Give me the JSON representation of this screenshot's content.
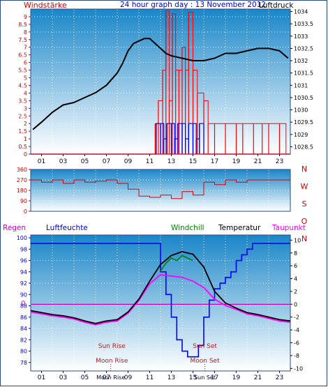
{
  "header": {
    "left_label": "Windstärke",
    "title": "24 hour graph day : 13 November 2012",
    "right_label": "Luftdruck"
  },
  "colors": {
    "frame": "#2a4a8a",
    "sky_top": "#1a86c8",
    "sky_bottom": "#ffffff",
    "wind": "#e00000",
    "gust": "#ff0000",
    "baro": "#000000",
    "dir": "#e00000",
    "humidity": "#0000ff",
    "windchill": "#008000",
    "temperature": "#000000",
    "dewpoint": "#ff00ff",
    "regen": "#cc00cc",
    "left_axis_red": "#cc0000",
    "blue_text": "#0000cc",
    "sunmoon": "#aa2222"
  },
  "chart_data": [
    {
      "type": "line",
      "title": "24 hour graph day : 13 November 2012",
      "ylabel": "Windstärke",
      "y2label": "Luftdruck",
      "x_ticks": [
        "01",
        "03",
        "05",
        "07",
        "09",
        "11",
        "13",
        "15",
        "17",
        "19",
        "21",
        "23"
      ],
      "ylim": [
        0,
        9.5
      ],
      "y_ticks": [
        "0",
        "0.5",
        "1",
        "1.5",
        "2",
        "2.5",
        "3",
        "3.5",
        "4",
        "4.5",
        "5",
        "5.5",
        "6",
        "6.5",
        "7",
        "7.5",
        "8",
        "8.5",
        "9"
      ],
      "y2lim": [
        1028.2,
        1034.1
      ],
      "y2_ticks": [
        "1028.5",
        "1029",
        "1029.5",
        "1030",
        "1030.5",
        "1031",
        "1031.5",
        "1032",
        "1032.5",
        "1033",
        "1033.5",
        "1034"
      ],
      "series": [
        {
          "name": "Luftdruck",
          "x": [
            0.2,
            1,
            2,
            3,
            4,
            5,
            6,
            7,
            8,
            8.5,
            9,
            9.5,
            10,
            10.5,
            11,
            11.5,
            12,
            12.5,
            13,
            14,
            15,
            16,
            17,
            18,
            19,
            20,
            21,
            22,
            23,
            23.8
          ],
          "y": [
            1029.2,
            1029.5,
            1029.9,
            1030.2,
            1030.3,
            1030.5,
            1030.7,
            1031.0,
            1031.5,
            1031.9,
            1032.4,
            1032.7,
            1032.8,
            1032.9,
            1032.9,
            1032.7,
            1032.5,
            1032.3,
            1032.2,
            1032.1,
            1032.0,
            1032.0,
            1032.1,
            1032.3,
            1032.3,
            1032.4,
            1032.5,
            1032.5,
            1032.4,
            1032.1
          ]
        },
        {
          "name": "Windstärke",
          "x": [
            0,
            11.5,
            11.6,
            12,
            12.3,
            12.6,
            13,
            13.3,
            13.6,
            14,
            14.3,
            14.6,
            15,
            15.3,
            15.6,
            16,
            16.5,
            17,
            18,
            19,
            20,
            21,
            22,
            23,
            24
          ],
          "y": [
            0,
            0,
            2,
            2,
            1,
            2,
            2,
            1,
            2,
            2,
            1,
            2,
            2,
            1,
            2,
            0,
            0,
            0,
            0,
            0,
            0,
            0,
            0,
            0,
            0
          ]
        },
        {
          "name": "Böen",
          "x": [
            11.5,
            11.8,
            12.2,
            12.5,
            12.8,
            13.1,
            13.4,
            13.7,
            14,
            14.3,
            14.6,
            15,
            15.4,
            16,
            16.4,
            17,
            18,
            19,
            19.6,
            20.6,
            21.4,
            22,
            23,
            23.6
          ],
          "y": [
            2,
            3.5,
            5.5,
            9.4,
            3.5,
            9.2,
            5.5,
            5.5,
            7,
            5.5,
            9.3,
            5.5,
            4,
            3.5,
            2,
            2,
            2,
            2,
            2,
            2,
            2,
            2,
            2,
            0
          ]
        }
      ]
    },
    {
      "type": "line",
      "x_ticks": [
        "01",
        "03",
        "05",
        "07",
        "09",
        "11",
        "13",
        "15",
        "17",
        "19",
        "21",
        "23"
      ],
      "ylim": [
        0,
        360
      ],
      "y_ticks": [
        "0",
        "90",
        "180",
        "270",
        "360"
      ],
      "y2_ticks": [
        "N",
        "W",
        "S",
        "O",
        "N"
      ],
      "series": [
        {
          "name": "Windrichtung",
          "x": [
            0,
            1,
            2,
            3,
            4,
            5,
            6,
            7,
            8,
            9,
            10,
            11,
            12,
            13,
            14,
            15,
            16,
            17,
            18,
            19,
            20,
            21,
            22,
            23,
            24
          ],
          "y": [
            270,
            250,
            270,
            240,
            270,
            250,
            260,
            270,
            240,
            190,
            130,
            120,
            140,
            110,
            170,
            140,
            250,
            230,
            270,
            250,
            270,
            270,
            270,
            270,
            270
          ]
        }
      ]
    },
    {
      "type": "line",
      "left_label": "Regen",
      "labels": [
        "Luftfeuchte",
        "Windchill",
        "Temperatur",
        "Taupunkt"
      ],
      "x_ticks": [
        "01",
        "03",
        "05",
        "07",
        "09",
        "11",
        "13",
        "15",
        "17",
        "19",
        "21",
        "23"
      ],
      "ylim": [
        76.5,
        100.5
      ],
      "y_ticks": [
        "78",
        "80",
        "82",
        "84",
        "86",
        "88",
        "90",
        "92",
        "94",
        "96",
        "98",
        "100"
      ],
      "y2lim": [
        -10.4,
        10.8
      ],
      "y2_ticks": [
        "-10",
        "-8",
        "-6",
        "-4",
        "-2",
        "0",
        "2",
        "4",
        "6",
        "8",
        "10"
      ],
      "regen_label": "0",
      "series": [
        {
          "name": "Luftfeuchte",
          "x": [
            0,
            11.5,
            12,
            12.5,
            13,
            13.5,
            14,
            14.5,
            15,
            15.5,
            16,
            16.5,
            17,
            17.5,
            18,
            18.5,
            19,
            19.5,
            20,
            20.5,
            21,
            24
          ],
          "y": [
            99,
            99,
            94,
            90,
            86,
            82,
            80,
            79,
            79,
            81,
            86,
            89,
            91,
            92,
            93,
            94,
            96,
            97,
            98,
            99,
            99,
            99
          ]
        },
        {
          "name": "Temperatur",
          "x": [
            0,
            1,
            2,
            3,
            4,
            5,
            6,
            7,
            8,
            9,
            10,
            11,
            12,
            13,
            14,
            15,
            16,
            17,
            18,
            19,
            20,
            21,
            22,
            23,
            24
          ],
          "y": [
            -1,
            -1.3,
            -1.6,
            -1.8,
            -2.1,
            -2.6,
            -3,
            -2.6,
            -2.4,
            -1.2,
            0.8,
            3.6,
            6.2,
            7.6,
            8.2,
            7.8,
            5.8,
            2,
            0.2,
            -0.6,
            -1.3,
            -1.6,
            -2,
            -2.4,
            -2.6
          ]
        },
        {
          "name": "Taupunkt",
          "x": [
            0,
            1,
            2,
            3,
            4,
            5,
            6,
            7,
            8,
            9,
            10,
            11,
            12,
            13,
            14,
            15,
            16,
            17,
            18,
            19,
            20,
            21,
            22,
            23,
            24
          ],
          "y": [
            -1.2,
            -1.5,
            -1.8,
            -2,
            -2.3,
            -2.8,
            -3.2,
            -2.8,
            -2.6,
            -1.4,
            0.6,
            3.2,
            4.6,
            4.4,
            4.2,
            3.6,
            2.6,
            0.8,
            -0.2,
            -0.8,
            -1.5,
            -1.8,
            -2.2,
            -2.6,
            -2.8
          ]
        },
        {
          "name": "Windchill",
          "x": [
            12,
            12.5,
            13,
            13.5,
            14,
            14.5,
            15
          ],
          "y": [
            5.2,
            6.4,
            7.2,
            6.8,
            7.6,
            7.2,
            6.8
          ]
        }
      ],
      "annotations": [
        {
          "text": "Sun Rise",
          "x": 7.5
        },
        {
          "text": "Moon Rise",
          "x": 7.5
        },
        {
          "text": "Sun Set",
          "x": 16.1
        },
        {
          "text": "Moon Set",
          "x": 16.1
        }
      ],
      "x_markers": [
        {
          "text": "Moon Rise",
          "x": 7.4
        },
        {
          "text": "Sun Set",
          "x": 16.1
        }
      ]
    }
  ]
}
